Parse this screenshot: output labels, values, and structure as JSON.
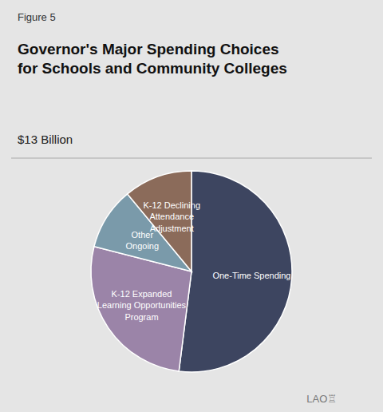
{
  "chart_data": {
    "type": "pie",
    "title": "Governor's Major Spending Choices\nfor Schools and Community Colleges",
    "subtitle": "$13 Billion",
    "annotations": [
      "Figure 5",
      "LAO♖"
    ],
    "categories": [
      "One-Time Spending",
      "K-12 Expanded\nLearning Opportunities\nProgram",
      "Other\nOngoing",
      "K-12 Declining\nAttendance\nAdjustment"
    ],
    "values": [
      52,
      27,
      10,
      11
    ],
    "colors": [
      "#3d4560",
      "#9b84a8",
      "#7a9aaa",
      "#8b6b5a"
    ]
  }
}
